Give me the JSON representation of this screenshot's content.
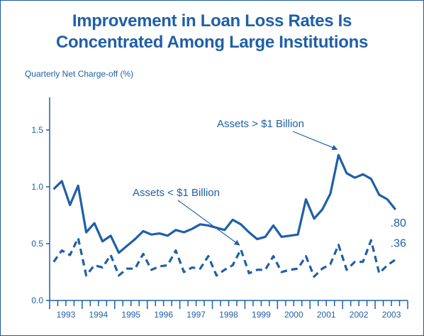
{
  "title_lines": [
    "Improvement in Loan Loss Rates Is",
    "Concentrated Among Large Institutions"
  ],
  "colors": {
    "line": "#1f5fa8",
    "axis": "#1f5fa8",
    "text": "#1f5fa8"
  },
  "chart_data": {
    "type": "line",
    "title": "Improvement in Loan Loss Rates Is Concentrated Among Large Institutions",
    "ylabel": "Quarterly Net Charge-off (%)",
    "xlabel": "",
    "ylim": [
      0,
      1.75
    ],
    "yticks": [
      0.0,
      0.5,
      1.0,
      1.5
    ],
    "ytick_labels": [
      "0.0",
      "0.5",
      "1.0",
      "1.5"
    ],
    "grid": false,
    "x_start_year": 1993,
    "quarters_per_year": 4,
    "xtick_labels": [
      "1993",
      "1994",
      "1995",
      "1996",
      "1997",
      "1998",
      "1999",
      "2000",
      "2001",
      "2002",
      "2003"
    ],
    "series": [
      {
        "name": "Assets > $1 Billion",
        "style": "solid",
        "end_label": ".80",
        "values": [
          0.98,
          1.05,
          0.84,
          1.01,
          0.6,
          0.68,
          0.52,
          0.57,
          0.42,
          0.48,
          0.54,
          0.61,
          0.58,
          0.59,
          0.57,
          0.62,
          0.6,
          0.63,
          0.67,
          0.66,
          0.64,
          0.62,
          0.71,
          0.67,
          0.6,
          0.54,
          0.56,
          0.66,
          0.56,
          0.57,
          0.58,
          0.89,
          0.72,
          0.8,
          0.94,
          1.28,
          1.12,
          1.08,
          1.11,
          1.07,
          0.93,
          0.89,
          0.8
        ]
      },
      {
        "name": "Assets < $1 Billion",
        "style": "dashed",
        "end_label": ".36",
        "values": [
          0.34,
          0.44,
          0.4,
          0.55,
          0.22,
          0.31,
          0.29,
          0.4,
          0.22,
          0.28,
          0.28,
          0.41,
          0.27,
          0.3,
          0.31,
          0.44,
          0.25,
          0.29,
          0.28,
          0.39,
          0.22,
          0.27,
          0.31,
          0.45,
          0.24,
          0.27,
          0.27,
          0.39,
          0.25,
          0.27,
          0.28,
          0.39,
          0.21,
          0.28,
          0.32,
          0.49,
          0.27,
          0.34,
          0.34,
          0.53,
          0.24,
          0.31,
          0.36
        ]
      }
    ],
    "annotations": [
      {
        "text": "Assets > $1 Billion",
        "series": 0,
        "point_index": 35
      },
      {
        "text": "Assets < $1 Billion",
        "series": 1,
        "point_index": 23
      }
    ]
  }
}
